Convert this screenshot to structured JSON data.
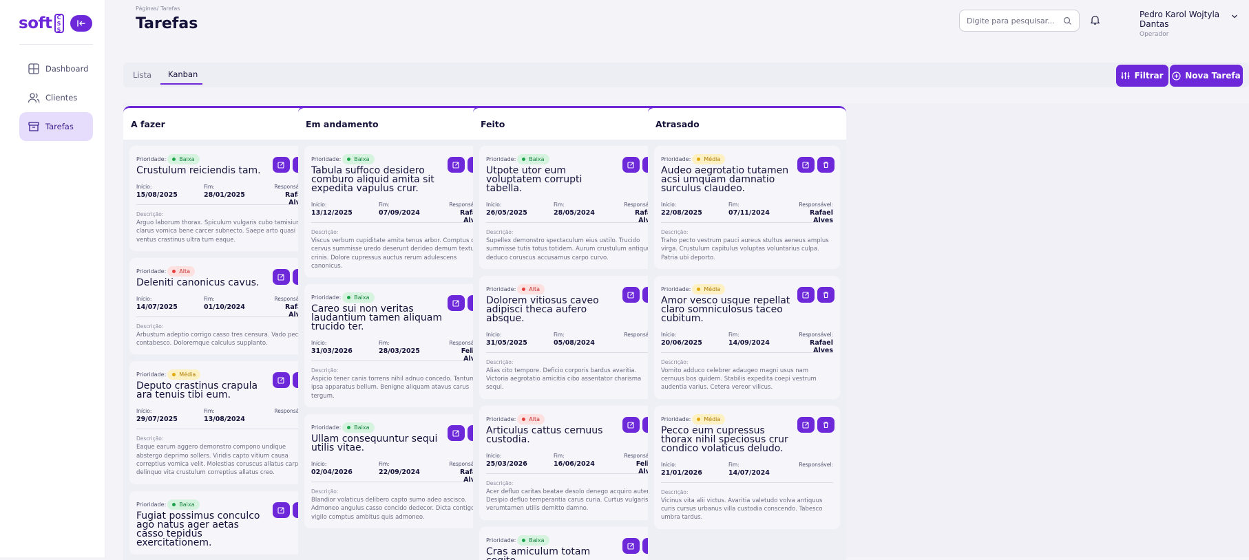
{
  "brand": {
    "logo_text": "soft",
    "badge_text": "CSS"
  },
  "sidebar": {
    "items": [
      {
        "label": "Dashboard",
        "icon": "dashboard-icon"
      },
      {
        "label": "Clientes",
        "icon": "users-icon"
      },
      {
        "label": "Tarefas",
        "icon": "archive-icon",
        "active": true
      }
    ]
  },
  "header": {
    "breadcrumb": "Páginas/ Tarefas",
    "title": "Tarefas",
    "search_placeholder": "Digite para pesquisar...",
    "user_name": "Pedro Karol Wojtyla Dantas",
    "user_role": "Operador"
  },
  "tabs": [
    {
      "label": "Lista"
    },
    {
      "label": "Kanban",
      "active": true
    }
  ],
  "buttons": {
    "filter": "Filtrar",
    "new_task": "Nova Tarefa"
  },
  "labels": {
    "priority": "Prioridade:",
    "start": "Início:",
    "end": "Fim:",
    "owner": "Responsável:",
    "description": "Descrição:"
  },
  "columns": [
    {
      "title": "A fazer",
      "cards": [
        {
          "priority": "Baixa",
          "level": "baixa",
          "title": "Crustulum reiciendis tam.",
          "start": "15/08/2025",
          "end": "28/01/2025",
          "owner": "Rafael Alves",
          "description": "Arguo laborum thorax. Spiculum vulgaris cubo tamisium clarus vomica bene carcer subnecto. Saepe arto quasi ventus crastinus ultra tum eaque."
        },
        {
          "priority": "Alta",
          "level": "alta",
          "title": "Deleniti canonicus cavus.",
          "start": "14/07/2025",
          "end": "01/10/2024",
          "owner": "Rafael Alves",
          "description": "Arbustum adeptio corrigo casso tres censura. Vado pectus contabesco. Doloremque calculus supplanto."
        },
        {
          "priority": "Média",
          "level": "media",
          "title": "Deputo crastinus crapula ara tenuis tibi eum.",
          "start": "29/07/2025",
          "end": "13/08/2024",
          "owner": "",
          "description": "Eaque earum aggero demonstro compono undique abstergo deprimo sollers. Viridis capto vitium causa correptius vomica velit. Molestias coruscus allatus carpo delinquo vita crustulum correptius allatus creo."
        },
        {
          "priority": "Baixa",
          "level": "baixa",
          "title": "Fugiat possimus conculco ago natus ager aetas casso tepidus exercitationem.",
          "start": "",
          "end": "",
          "owner": "",
          "description": ""
        }
      ]
    },
    {
      "title": "Em andamento",
      "cards": [
        {
          "priority": "Baixa",
          "level": "baixa",
          "title": "Tabula suffoco desidero comburo aliquid amita sit expedita vapulus crur.",
          "start": "13/12/2025",
          "end": "07/09/2024",
          "owner": "Rafael Alves",
          "description": "Viscus verbum cupiditate amita tenus arbor. Comptus quo cervus summisse uredo deserunt derideo demum textus crinis. Dolore cupressus auctus rerum adulescens canonicus."
        },
        {
          "priority": "Baixa",
          "level": "baixa",
          "title": "Careo sui non veritas laudantium tamen aliquam trucido ter.",
          "start": "31/03/2026",
          "end": "28/03/2025",
          "owner": "Felipe Alves",
          "description": "Aspicio tener canis torrens nihil adnuo concedo. Tantum ipsa apparatus bellum. Benigne aliquam atavus carus tergum."
        },
        {
          "priority": "Baixa",
          "level": "baixa",
          "title": "Ullam consequuntur sequi utilis vitae.",
          "start": "02/04/2026",
          "end": "22/09/2024",
          "owner": "Rafael Alves",
          "description": "Blandior volaticus delibero capto sumo adeo ascisco. Admoneo angulus casso concido dedecor. Dicta contigo vigilo comptus ambitus quis admoneo."
        }
      ]
    },
    {
      "title": "Feito",
      "cards": [
        {
          "priority": "Baixa",
          "level": "baixa",
          "title": "Utpote utor eum voluptatem corrupti tabella.",
          "start": "26/05/2025",
          "end": "28/05/2024",
          "owner": "Rafael Alves",
          "description": "Supellex demonstro spectaculum eius ustilo. Trucido summisse tutis totus totidem. Aurum crustulum antiquus deduco coruscus accusamus carpo curvo."
        },
        {
          "priority": "Alta",
          "level": "alta",
          "title": "Dolorem vitiosus caveo adipisci theca aufero absque.",
          "start": "31/05/2025",
          "end": "05/08/2024",
          "owner": "",
          "description": "Alias cito tempore. Deficio corporis bardus avaritia. Victoria aegrotatio amicitia cibo assentator charisma sequi."
        },
        {
          "priority": "Alta",
          "level": "alta",
          "title": "Articulus cattus cernuus custodia.",
          "start": "25/03/2026",
          "end": "16/06/2024",
          "owner": "Felipe Alves",
          "description": "Acer defluo caritas beatae desolo denego acquiro autem. Desipio defluo temperantia carus curia. Curtus vulgaris verumtamen utilis demitto damno."
        },
        {
          "priority": "Baixa",
          "level": "baixa",
          "title": "Cras amiculum totam cogito.",
          "start": "",
          "end": "",
          "owner": "",
          "description": ""
        }
      ]
    },
    {
      "title": "Atrasado",
      "cards": [
        {
          "priority": "Média",
          "level": "media",
          "title": "Audeo aegrotatio tutamen acsi umquam damnatio surculus claudeo.",
          "start": "22/08/2025",
          "end": "07/11/2024",
          "owner": "Rafael Alves",
          "description": "Traho pecto vestrum pauci aureus stultus aeneus amplus virga. Crustulum capitulus voluptas voluntarius culpa. Patria ubi deporto."
        },
        {
          "priority": "Média",
          "level": "media",
          "title": "Amor vesco usque repellat claro somniculosus taceo cubitum.",
          "start": "20/06/2025",
          "end": "14/09/2024",
          "owner": "Rafael Alves",
          "description": "Vomito adduco celebrer adaugeo magni usus nam cernuus bos quidem. Stabilis expedita coepi vestrum audentia varius. Cetera vereor vilicus."
        },
        {
          "priority": "Média",
          "level": "media",
          "title": "Pecco eum cupressus thorax nihil speciosus crur condico volaticus deludo.",
          "start": "21/01/2026",
          "end": "14/07/2024",
          "owner": "",
          "description": "Vicinus vita alii victus. Avaritia valetudo volva antiquus curis cursus urbanus villa custodia conscendo. Tabesco umbra tardus."
        }
      ]
    }
  ]
}
